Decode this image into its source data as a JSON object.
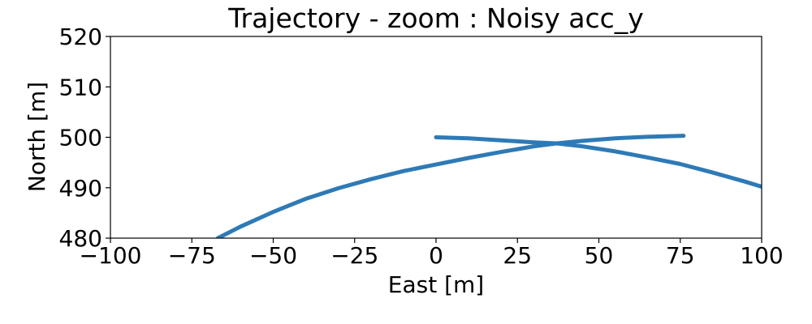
{
  "chart_data": {
    "type": "scatter",
    "title": "Trajectory - zoom : Noisy acc_y",
    "xlabel": "East [m]",
    "ylabel": "North [m]",
    "xlim": [
      -100,
      100
    ],
    "ylim": [
      480,
      520
    ],
    "xticks": [
      -100,
      -75,
      -50,
      -25,
      0,
      25,
      50,
      75,
      100
    ],
    "yticks": [
      480,
      490,
      500,
      510,
      520
    ],
    "xtick_labels": [
      "−100",
      "−75",
      "−50",
      "−25",
      "0",
      "25",
      "50",
      "75",
      "100"
    ],
    "ytick_labels": [
      "480",
      "490",
      "500",
      "510",
      "520"
    ],
    "grid": false,
    "series": [
      {
        "color": "#2e7ab6",
        "segments": [
          {
            "x": [
              -67,
              -60,
              -50,
              -40,
              -30,
              -20,
              -10,
              0,
              10,
              20,
              30,
              37,
              45,
              55,
              65,
              75,
              85,
              95,
              100
            ],
            "y": [
              480,
              482.3,
              485.2,
              487.8,
              489.9,
              491.7,
              493.3,
              494.6,
              495.9,
              497.1,
              498.2,
              498.8,
              498.2,
              497.2,
              496.0,
              494.7,
              493.0,
              491.2,
              490.2
            ]
          },
          {
            "x": [
              0,
              10,
              20,
              30,
              37,
              45,
              55,
              65,
              76
            ],
            "y": [
              500,
              499.8,
              499.4,
              499.0,
              498.8,
              499.3,
              499.8,
              500.1,
              500.3
            ]
          }
        ]
      }
    ]
  }
}
